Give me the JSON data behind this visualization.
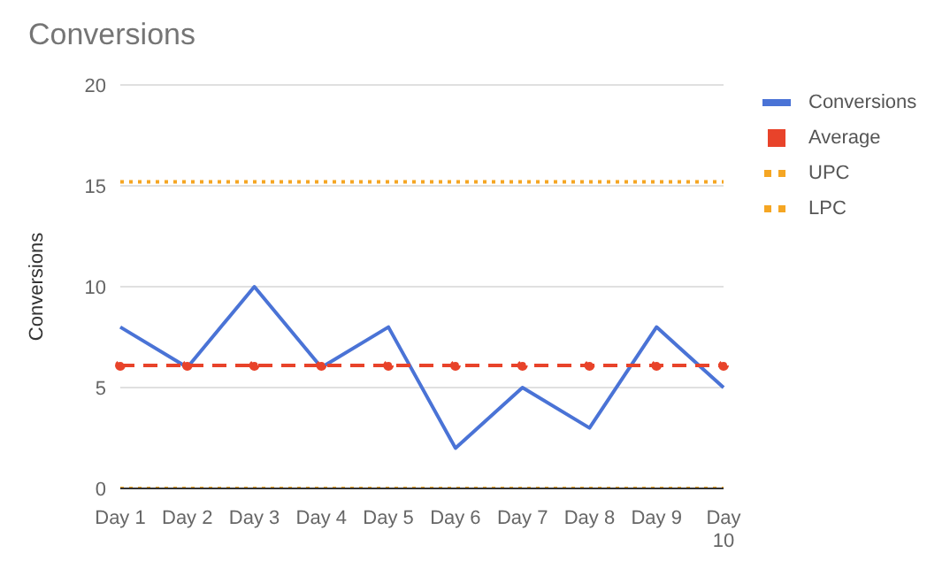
{
  "chart_data": {
    "type": "line",
    "title": "Conversions",
    "ylabel": "Conversions",
    "categories": [
      "Day 1",
      "Day 2",
      "Day 3",
      "Day 4",
      "Day 5",
      "Day 6",
      "Day 7",
      "Day 8",
      "Day 9",
      "Day 10"
    ],
    "series": [
      {
        "name": "Conversions",
        "color": "#4a73d6",
        "values": [
          8,
          6,
          10,
          6,
          8,
          2,
          5,
          3,
          8,
          5
        ],
        "line_style": "solid",
        "marker": "none"
      },
      {
        "name": "Average",
        "color": "#e8432a",
        "values": [
          6.1,
          6.1,
          6.1,
          6.1,
          6.1,
          6.1,
          6.1,
          6.1,
          6.1,
          6.1
        ],
        "line_style": "dashed",
        "marker": "circle"
      },
      {
        "name": "UPC",
        "color": "#f5a623",
        "values": [
          15.2,
          15.2,
          15.2,
          15.2,
          15.2,
          15.2,
          15.2,
          15.2,
          15.2,
          15.2
        ],
        "line_style": "dotted",
        "marker": "none"
      },
      {
        "name": "LPC",
        "color": "#f5a623",
        "values": [
          0,
          0,
          0,
          0,
          0,
          0,
          0,
          0,
          0,
          0
        ],
        "line_style": "dotted",
        "marker": "none"
      }
    ],
    "ylim": [
      0,
      20
    ],
    "yticks": [
      0,
      5,
      10,
      15,
      20
    ],
    "grid": "y",
    "legend": "right"
  }
}
